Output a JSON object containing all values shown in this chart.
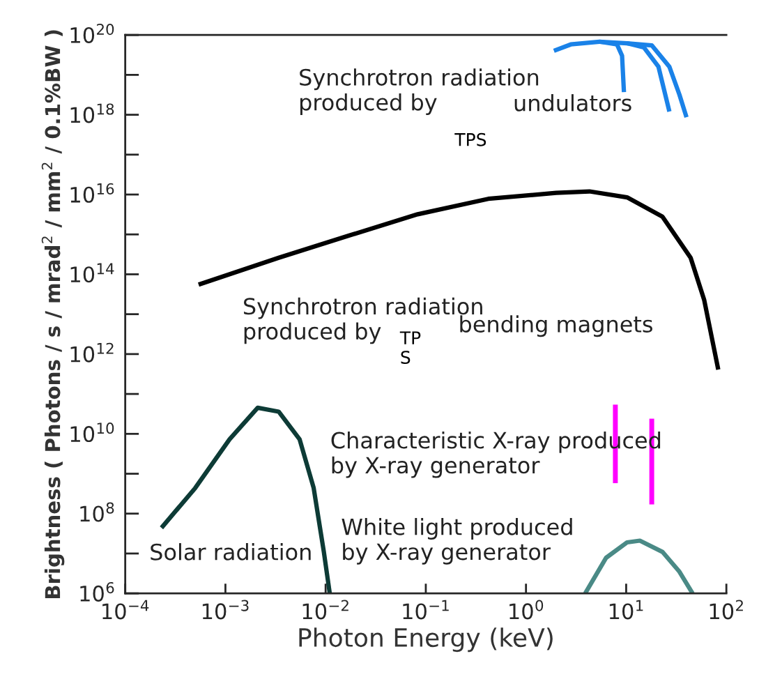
{
  "chart_data": {
    "type": "line",
    "xlabel": "Photon Energy (keV)",
    "ylabel": "Brightness ( Photons / s / mrad$^{2}$ / mm$^{2}$ / 0.1%BW )",
    "log": "xy",
    "grid": false,
    "legend": false,
    "marker": "none",
    "line_style": "solid",
    "xlim": [
      0.0001,
      100
    ],
    "ylim": [
      1000000,
      1e+20
    ],
    "xticks": [
      {
        "value": 0.0001,
        "label": "10$^{−4}$"
      },
      {
        "value": 0.001,
        "label": "10$^{−3}$"
      },
      {
        "value": 0.01,
        "label": "10$^{−2}$"
      },
      {
        "value": 0.1,
        "label": "10$^{−1}$"
      },
      {
        "value": 1,
        "label": "10$^{0}$"
      },
      {
        "value": 10,
        "label": "10$^{1}$"
      },
      {
        "value": 100,
        "label": "10$^{2}$"
      }
    ],
    "yticks": [
      {
        "value": 1000000.0,
        "label": "10$^{6}$"
      },
      {
        "value": 100000000.0,
        "label": "10$^{8}$"
      },
      {
        "value": 10000000000.0,
        "label": "10$^{10}$"
      },
      {
        "value": 1000000000000.0,
        "label": "10$^{12}$"
      },
      {
        "value": 100000000000000.0,
        "label": "10$^{14}$"
      },
      {
        "value": 1e+16,
        "label": "10$^{16}$"
      },
      {
        "value": 1e+18,
        "label": "10$^{18}$"
      },
      {
        "value": 1e+20,
        "label": "10$^{20}$"
      }
    ],
    "series": [
      {
        "color": "#000000",
        "x": [
          0.00054,
          0.0034,
          0.017,
          0.083,
          0.42,
          2.0,
          4.3,
          10.2,
          23,
          44,
          60,
          83
        ],
        "values": [
          55000000000000.0,
          260000000000000.0,
          930000000000000.0,
          3200000000000000.0,
          7800000000000000.0,
          1.1e+16,
          1.2e+16,
          8500000000000000.0,
          2800000000000000.0,
          260000000000000.0,
          23000000000000.0,
          410000000000.0
        ]
      },
      {
        "color": "#0d3b36",
        "x": [
          0.00023,
          0.0005,
          0.0011,
          0.0021,
          0.0034,
          0.0055,
          0.0076,
          0.0096,
          0.011
        ],
        "values": [
          44000000.0,
          440000000.0,
          7300000000.0,
          45000000000.0,
          36000000000.0,
          7300000000.0,
          440000000.0,
          11000000.0,
          1000000.0
        ]
      },
      {
        "color": "#4a8a86",
        "x": [
          3.9,
          6.3,
          10.2,
          13.7,
          23,
          34,
          46
        ],
        "values": [
          1000000.0,
          7800000.0,
          19000000.0,
          21000000.0,
          11000000.0,
          3500000.0,
          1000000.0
        ]
      },
      {
        "color": "#ff00ff",
        "x": [
          7.8,
          7.8
        ],
        "values": [
          54000000000.0,
          580000000.0
        ]
      },
      {
        "color": "#ff00ff",
        "x": [
          18,
          18
        ],
        "values": [
          24000000000.0,
          170000000.0
        ]
      },
      {
        "color": "#1a82e8",
        "x": [
          1.9,
          2.8,
          5.4,
          8.1,
          9.1,
          9.5
        ],
        "values": [
          4e+19,
          5.8e+19,
          6.8e+19,
          5.8e+19,
          3e+19,
          3.7e+18
        ]
      },
      {
        "color": "#1a82e8",
        "x": [
          5.4,
          10.2,
          15,
          21,
          27
        ],
        "values": [
          6.8e+19,
          6.2e+19,
          4.9e+19,
          1.6e+19,
          1.2e+18
        ]
      },
      {
        "color": "#1a82e8",
        "x": [
          10.2,
          18,
          27,
          34,
          40
        ],
        "values": [
          6.2e+19,
          5.5e+19,
          1.6e+19,
          3.2e+18,
          8.7e+17
        ]
      }
    ],
    "annotations": [
      "Synchrotron radiation\nproduced by",
      "undulators",
      "TPS",
      "Synchrotron radiation\nproduced by",
      "TP\nS",
      "bending magnets",
      "Characteristic X-ray produced\nby X-ray generator",
      "Solar radiation",
      "White light produced\nby X-ray generator"
    ]
  }
}
